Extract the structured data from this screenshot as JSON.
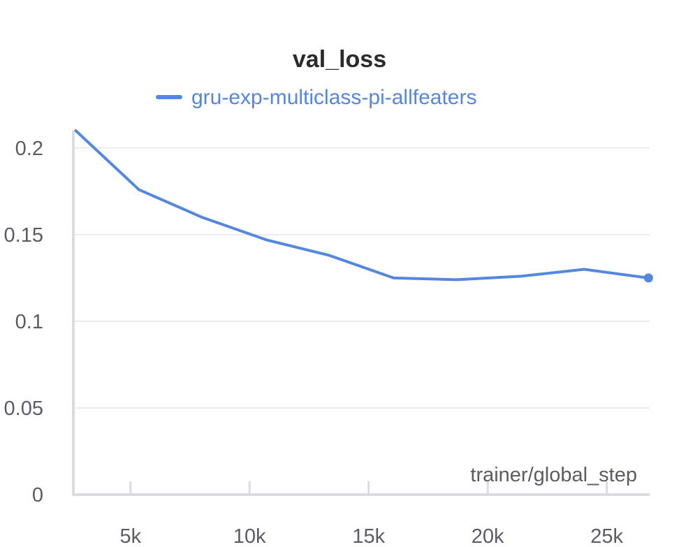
{
  "chart_data": {
    "type": "line",
    "title": "val_loss",
    "xlabel": "trainer/global_step",
    "ylabel": "",
    "xlim": [
      2600,
      26800
    ],
    "ylim": [
      0,
      0.21
    ],
    "x_ticks": [
      5000,
      10000,
      15000,
      20000,
      25000
    ],
    "x_tick_labels": [
      "5k",
      "10k",
      "15k",
      "20k",
      "25k"
    ],
    "y_ticks": [
      0,
      0.05,
      0.1,
      0.15,
      0.2
    ],
    "y_tick_labels": [
      "0",
      "0.05",
      "0.1",
      "0.15",
      "0.2"
    ],
    "grid": true,
    "legend_position": "top-center",
    "series": [
      {
        "name": "gru-exp-multiclass-pi-allfeaters",
        "color": "#5487e0",
        "x": [
          2700,
          5350,
          8000,
          10700,
          13350,
          16050,
          18700,
          21400,
          24050,
          26750
        ],
        "y": [
          0.21,
          0.176,
          0.16,
          0.147,
          0.138,
          0.125,
          0.124,
          0.126,
          0.13,
          0.125
        ]
      }
    ]
  }
}
